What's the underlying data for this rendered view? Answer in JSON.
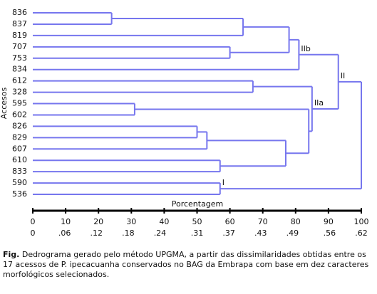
{
  "chart_data": {
    "type": "dendrogram",
    "y_label": "Accesos",
    "x_label": "Porcentagem",
    "xlim": [
      0,
      100
    ],
    "xticks": [
      0,
      10,
      20,
      30,
      40,
      50,
      60,
      70,
      80,
      90,
      100
    ],
    "x2lim": [
      0,
      0.62
    ],
    "x2ticks": [
      0,
      {
        "value": 0.06,
        "label": ".06"
      },
      {
        "value": 0.12,
        "label": ".12"
      },
      {
        "value": 0.18,
        "label": ".18"
      },
      {
        "value": 0.24,
        "label": ".24"
      },
      {
        "value": 0.31,
        "label": ".31"
      },
      {
        "value": 0.37,
        "label": ".37"
      },
      {
        "value": 0.43,
        "label": ".43"
      },
      {
        "value": 0.49,
        "label": ".49"
      },
      {
        "value": 0.56,
        "label": ".56"
      },
      {
        "value": 0.62,
        "label": ".62"
      }
    ],
    "color": "#7676ee",
    "tree": {
      "height": 100,
      "children": [
        {
          "height": 93,
          "label": "II",
          "children": [
            {
              "height": 81,
              "label": "IIb",
              "children": [
                {
                  "height": 78,
                  "children": [
                    {
                      "height": 64,
                      "children": [
                        {
                          "height": 24,
                          "children": [
                            {
                              "leaf": "836"
                            },
                            {
                              "leaf": "837"
                            }
                          ]
                        },
                        {
                          "leaf": "819"
                        }
                      ]
                    },
                    {
                      "height": 60,
                      "children": [
                        {
                          "leaf": "707"
                        },
                        {
                          "leaf": "753"
                        }
                      ]
                    }
                  ]
                },
                {
                  "leaf": "834"
                }
              ]
            },
            {
              "height": 85,
              "label": "IIa",
              "children": [
                {
                  "height": 67,
                  "children": [
                    {
                      "leaf": "612"
                    },
                    {
                      "leaf": "328"
                    }
                  ]
                },
                {
                  "height": 84,
                  "children": [
                    {
                      "height": 31,
                      "children": [
                        {
                          "leaf": "595"
                        },
                        {
                          "leaf": "602"
                        }
                      ]
                    },
                    {
                      "height": 77,
                      "children": [
                        {
                          "height": 53,
                          "children": [
                            {
                              "height": 50,
                              "children": [
                                {
                                  "leaf": "826"
                                },
                                {
                                  "leaf": "829"
                                }
                              ]
                            },
                            {
                              "leaf": "607"
                            }
                          ]
                        },
                        {
                          "height": 57,
                          "children": [
                            {
                              "leaf": "610"
                            },
                            {
                              "leaf": "833"
                            }
                          ]
                        }
                      ]
                    }
                  ]
                }
              ]
            }
          ]
        },
        {
          "height": 57,
          "label": "I",
          "children": [
            {
              "leaf": "590"
            },
            {
              "leaf": "536"
            }
          ]
        }
      ]
    }
  },
  "caption": {
    "prefix": "Fig.",
    "text": "Dedrograma gerado pelo método UPGMA, a partir das dissimilaridades obtidas entre os 17 acessos de P. ipecacuanha conservados no BAG da Embrapa com base em dez caracteres morfológicos selecionados."
  }
}
